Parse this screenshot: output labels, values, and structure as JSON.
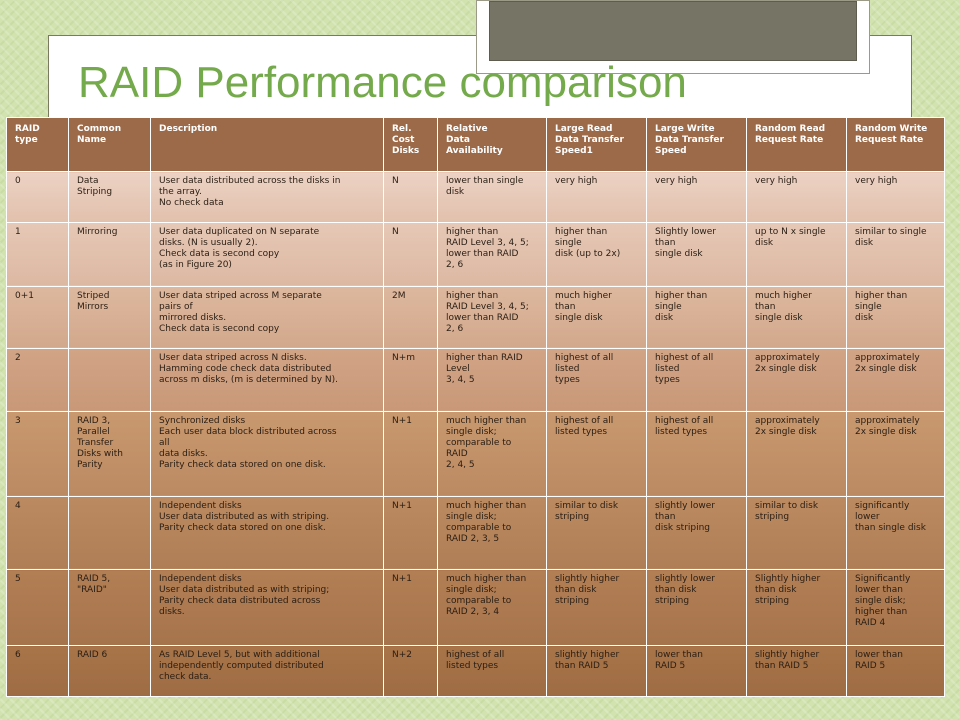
{
  "title": "RAID Performance comparison",
  "table": {
    "headers": [
      "RAID\ntype",
      "Common\nName",
      "Description",
      "Rel.\nCost\nDisks",
      "Relative\nData\nAvailability",
      "Large Read\nData Transfer\nSpeed1",
      "Large Write\nData Transfer\nSpeed",
      "Random Read\nRequest Rate",
      "Random Write\nRequest Rate"
    ],
    "rows": [
      [
        "0",
        "Data\nStriping",
        "User data distributed across the disks in\nthe array.\nNo check data",
        "N",
        "lower than single\ndisk",
        "very high",
        "very high",
        "very high",
        "very high"
      ],
      [
        "1",
        "Mirroring",
        "User data duplicated on N separate\ndisks. (N is usually 2).\nCheck data is second copy\n(as in Figure 20)",
        "N",
        "higher than\nRAID Level 3, 4, 5;\nlower than RAID\n2, 6",
        "higher than\nsingle\ndisk (up to 2x)",
        "Slightly lower\nthan\nsingle disk",
        "up to N x single\ndisk",
        "similar to single\ndisk"
      ],
      [
        "0+1",
        "Striped\nMirrors",
        "User data striped across M separate\npairs of\nmirrored disks.\nCheck data is second copy",
        "2M",
        "higher than\nRAID Level 3, 4, 5;\nlower than RAID\n2, 6",
        "much higher\nthan\nsingle disk",
        "higher than\nsingle\ndisk",
        "much higher\nthan\nsingle disk",
        "higher than\nsingle\ndisk"
      ],
      [
        "2",
        "",
        "User data striped across N disks.\nHamming code check data distributed\nacross m disks, (m is determined by N).",
        "N+m",
        "higher than RAID\nLevel\n3, 4, 5",
        "highest of all\nlisted\ntypes",
        "highest of all\nlisted\ntypes",
        "approximately\n2x single disk",
        "approximately\n2x single disk"
      ],
      [
        "3",
        "RAID 3,\nParallel\nTransfer\nDisks with\nParity",
        "Synchronized disks\nEach user data block distributed across\nall\ndata disks.\nParity check data stored on one disk.",
        "N+1",
        "much higher than\nsingle disk;\ncomparable to\nRAID\n2, 4, 5",
        "highest of all\nlisted types",
        "highest of all\nlisted types",
        "approximately\n2x single disk",
        "approximately\n2x single disk"
      ],
      [
        "4",
        "",
        "Independent disks\nUser data distributed as with striping.\nParity check data stored on one disk.",
        "N+1",
        "much higher than\nsingle disk;\ncomparable to\nRAID 2, 3, 5",
        "similar to disk\nstriping",
        "slightly lower\nthan\ndisk striping",
        "similar to disk\nstriping",
        "significantly\nlower\nthan single disk"
      ],
      [
        "5",
        "RAID 5,\n\"RAID\"",
        "Independent disks\nUser data distributed as with striping;\nParity check data distributed across\ndisks.",
        "N+1",
        "much higher than\nsingle disk;\ncomparable to\nRAID 2, 3, 4",
        "slightly higher\nthan disk\nstriping",
        "slightly lower\nthan disk\nstriping",
        "Slightly higher\nthan disk\nstriping",
        "Significantly\nlower than\nsingle disk;\nhigher than\nRAID 4"
      ],
      [
        "6",
        "RAID 6",
        "As RAID Level 5, but with additional\nindependently computed distributed\ncheck data.",
        "N+2",
        "highest of all\nlisted types",
        "slightly higher\nthan RAID 5",
        "lower than\nRAID 5",
        "slightly higher\nthan RAID 5",
        "lower than\nRAID 5"
      ]
    ]
  }
}
